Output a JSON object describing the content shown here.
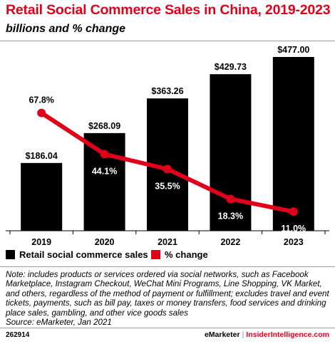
{
  "header": {
    "title": "Retail Social Commerce Sales in China, 2019-2023",
    "subtitle": "billions and % change"
  },
  "chart_data": {
    "type": "bar",
    "categories": [
      "2019",
      "2020",
      "2021",
      "2022",
      "2023"
    ],
    "series": [
      {
        "name": "Retail social commerce sales",
        "kind": "bar",
        "color": "#000000",
        "values": [
          186.04,
          268.09,
          363.26,
          429.73,
          477.0
        ],
        "labels": [
          "$186.04",
          "$268.09",
          "$363.26",
          "$429.73",
          "$477.00"
        ]
      },
      {
        "name": "% change",
        "kind": "line",
        "color": "#e1001a",
        "values": [
          67.8,
          44.1,
          35.5,
          18.3,
          11.0
        ],
        "labels": [
          "67.8%",
          "44.1%",
          "35.5%",
          "18.3%",
          "11.0%"
        ]
      }
    ],
    "ylim": [
      0,
      477
    ],
    "y2lim": [
      0,
      100
    ],
    "grid": false,
    "legend": "bottom-left"
  },
  "legend": {
    "items": [
      {
        "label": "Retail social commerce sales",
        "color": "#000000"
      },
      {
        "label": "% change",
        "color": "#e1001a"
      }
    ]
  },
  "note": {
    "text": "Note: includes products or services ordered via social networks, such as Facebook Marketplace, Instagram Checkout, WeChat Mini Programs, Line Shopping, VK Market, and others, regardless of the method of payment or fulfillment; excludes travel and event tickets, payments, such as bill pay, taxes or money transfers, food services and drinking place sales, gambling, and other vice goods sales",
    "source": "Source: eMarketer, Jan 2021"
  },
  "footer": {
    "id": "262914",
    "brand": "eMarketer",
    "separator": "|",
    "site": "InsiderIntelligence.com"
  }
}
